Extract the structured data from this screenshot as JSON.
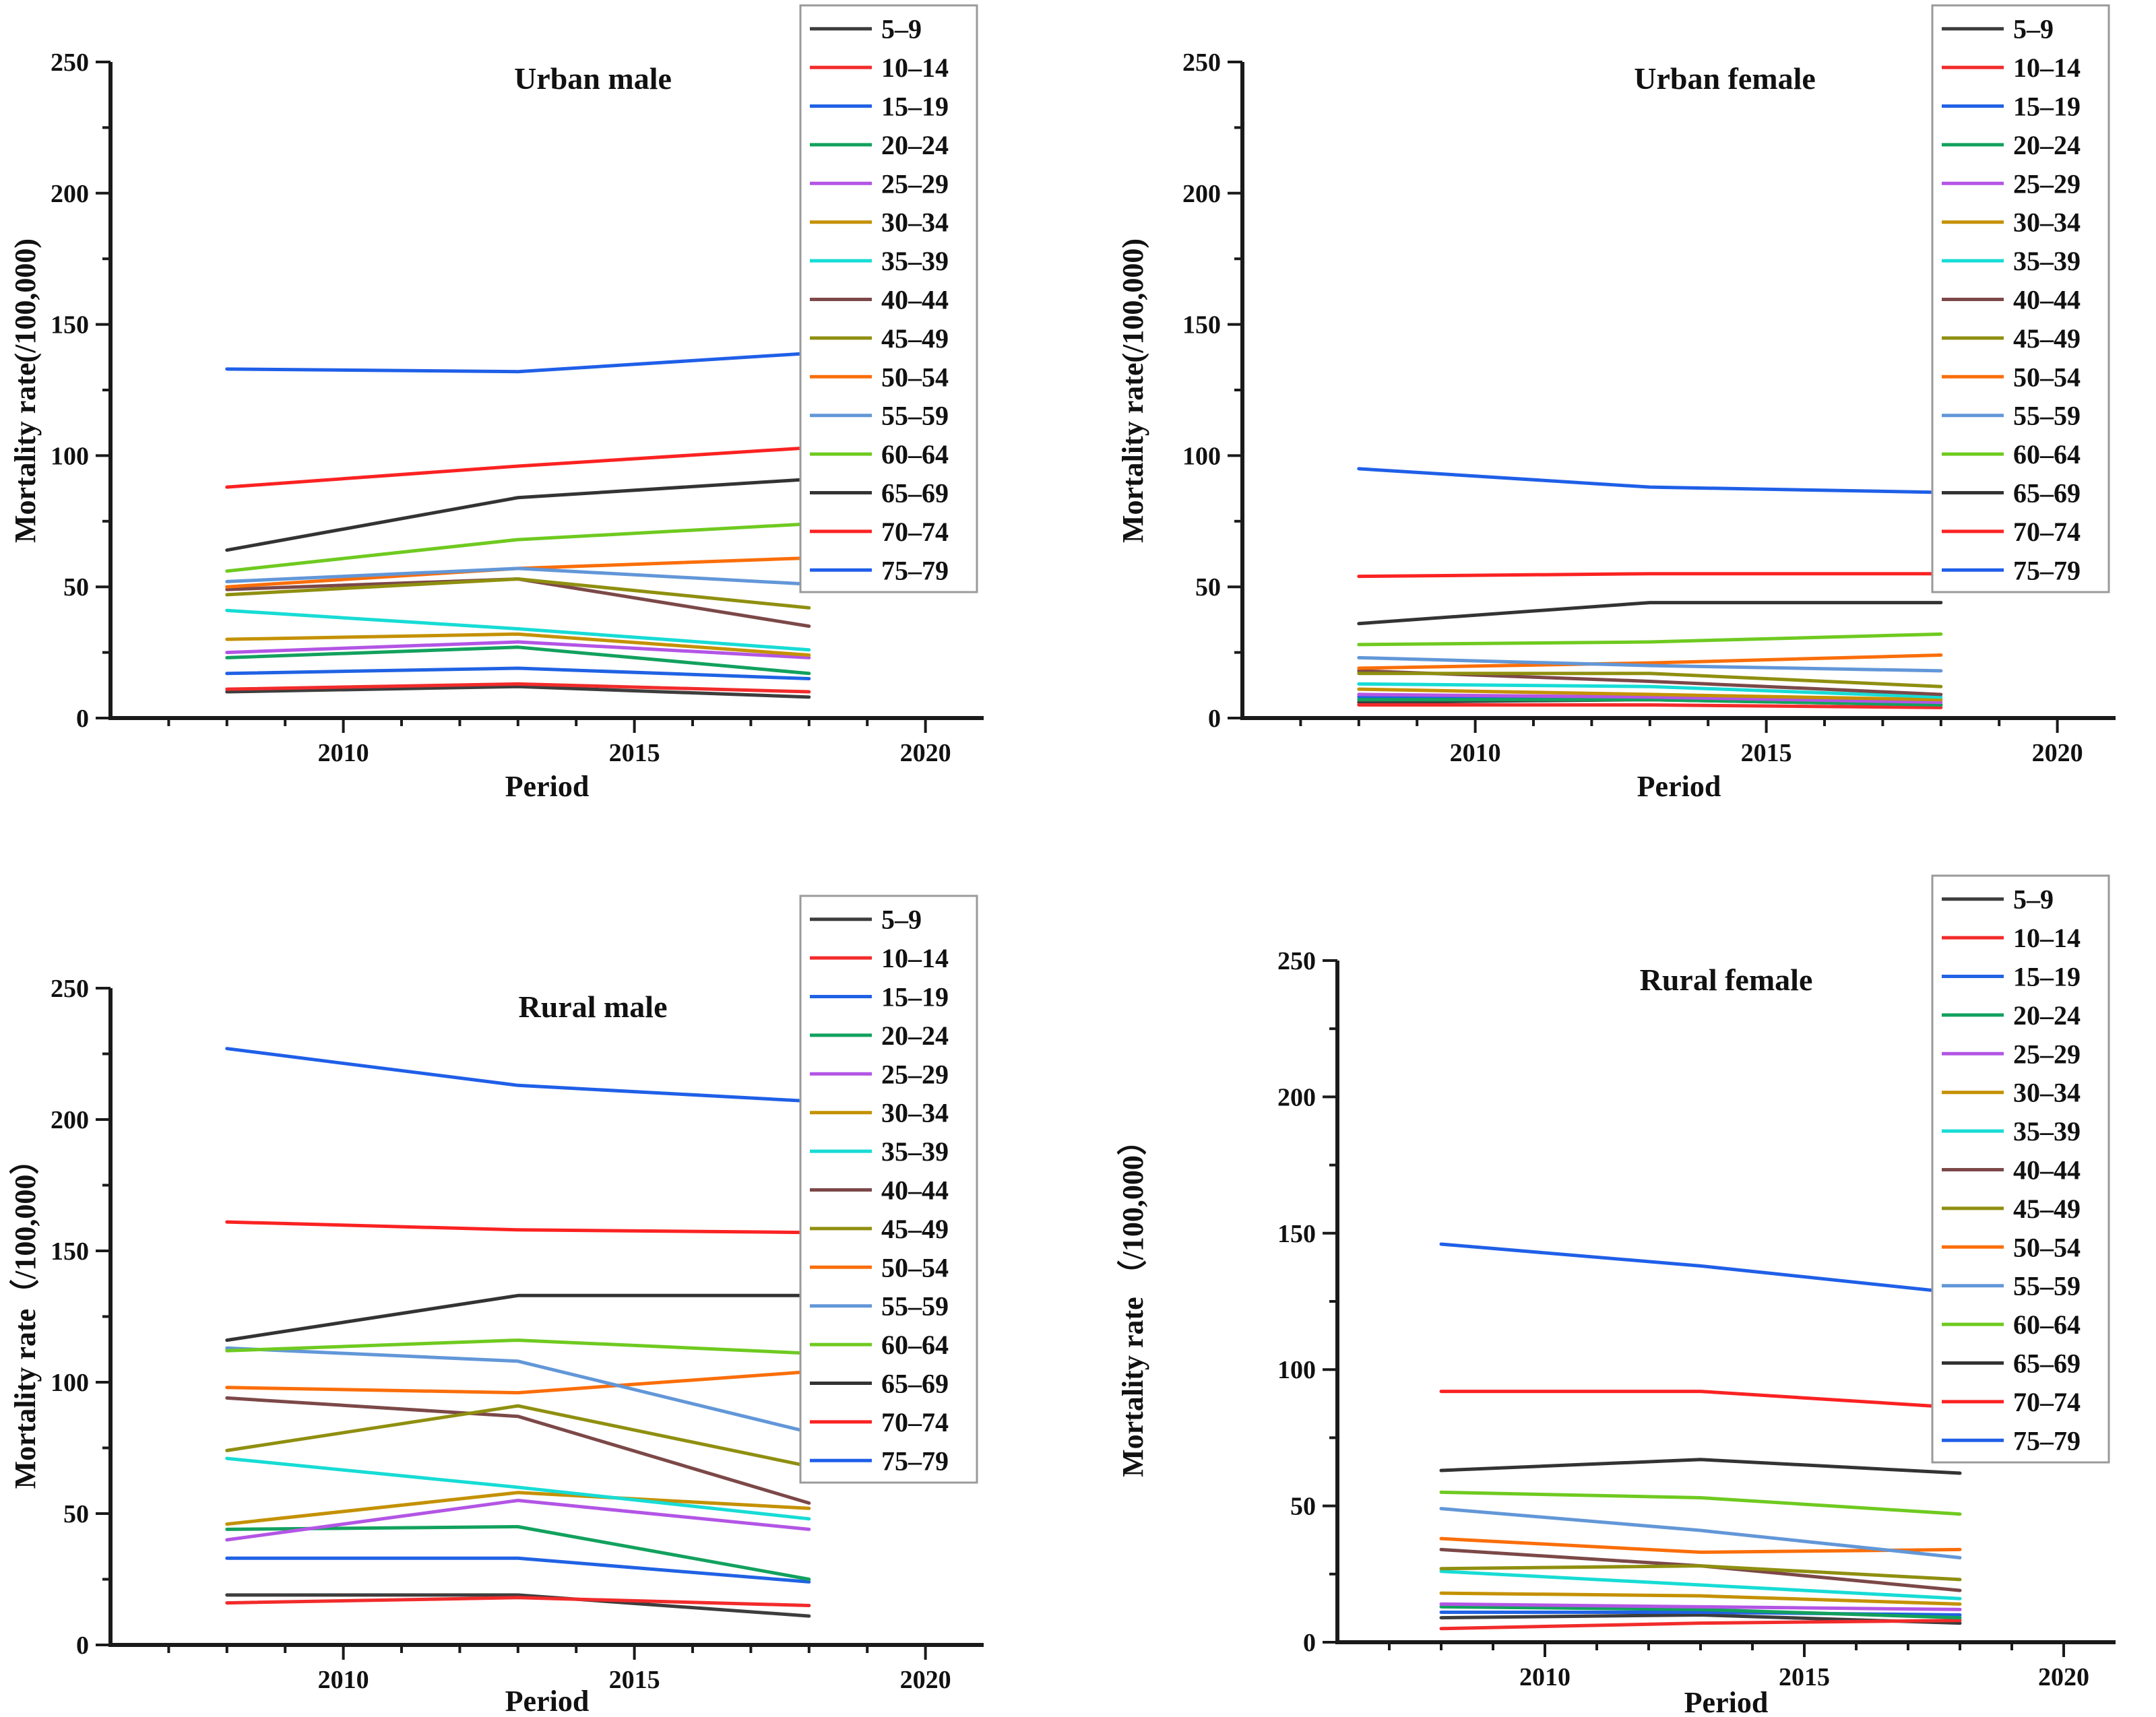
{
  "figure": {
    "background": "#ffffff",
    "axis_color": "#1a1a1a",
    "legend_border_color": "#9a9a9a"
  },
  "legend": {
    "labels": [
      "5–9",
      "10–14",
      "15–19",
      "20–24",
      "25–29",
      "30–34",
      "35–39",
      "40–44",
      "45–49",
      "50–54",
      "55–59",
      "60–64",
      "65–69",
      "70–74",
      "75–79"
    ]
  },
  "chart_data": [
    {
      "type": "line",
      "title": "Urban male",
      "xlabel": "Period",
      "ylabel": "Mortality rate(/100,000)",
      "x": [
        2008,
        2013,
        2018
      ],
      "xlim": [
        2006,
        2021
      ],
      "ylim": [
        0,
        250
      ],
      "xticks": [
        2010,
        2015,
        2020
      ],
      "yticks": [
        0,
        50,
        100,
        150,
        200,
        250
      ],
      "legend_position": "top-right",
      "grid": false,
      "series": [
        {
          "name": "5–9",
          "color": "#3d3d3d",
          "values": [
            10,
            12,
            8
          ]
        },
        {
          "name": "10–14",
          "color": "#f22b2b",
          "values": [
            11,
            13,
            10
          ]
        },
        {
          "name": "15–19",
          "color": "#2062e4",
          "values": [
            17,
            19,
            15
          ]
        },
        {
          "name": "20–24",
          "color": "#12a15e",
          "values": [
            23,
            27,
            17
          ]
        },
        {
          "name": "25–29",
          "color": "#b355e5",
          "values": [
            25,
            29,
            23
          ]
        },
        {
          "name": "30–34",
          "color": "#c49102",
          "values": [
            30,
            32,
            24
          ]
        },
        {
          "name": "35–39",
          "color": "#17dcd5",
          "values": [
            41,
            34,
            26
          ]
        },
        {
          "name": "40–44",
          "color": "#7c4848",
          "values": [
            49,
            53,
            35
          ]
        },
        {
          "name": "45–49",
          "color": "#8f8f10",
          "values": [
            47,
            53,
            42
          ]
        },
        {
          "name": "50–54",
          "color": "#fa6e0a",
          "values": [
            50,
            57,
            61
          ]
        },
        {
          "name": "55–59",
          "color": "#6297d8",
          "values": [
            52,
            57,
            51
          ]
        },
        {
          "name": "60–64",
          "color": "#6fca20",
          "values": [
            56,
            68,
            74
          ]
        },
        {
          "name": "65–69",
          "color": "#333333",
          "values": [
            64,
            84,
            91
          ]
        },
        {
          "name": "70–74",
          "color": "#fb2222",
          "values": [
            88,
            96,
            103
          ]
        },
        {
          "name": "75–79",
          "color": "#1f5fe8",
          "values": [
            133,
            132,
            139
          ]
        }
      ]
    },
    {
      "type": "line",
      "title": "Urban female",
      "xlabel": "Period",
      "ylabel": "Mortality rate(/100,000)",
      "x": [
        2008,
        2013,
        2018
      ],
      "xlim": [
        2006,
        2021
      ],
      "ylim": [
        0,
        250
      ],
      "xticks": [
        2010,
        2015,
        2020
      ],
      "yticks": [
        0,
        50,
        100,
        150,
        200,
        250
      ],
      "legend_position": "top-right",
      "grid": false,
      "series": [
        {
          "name": "5–9",
          "color": "#3d3d3d",
          "values": [
            6,
            7,
            5
          ]
        },
        {
          "name": "10–14",
          "color": "#f22b2b",
          "values": [
            5,
            5,
            4
          ]
        },
        {
          "name": "15–19",
          "color": "#2062e4",
          "values": [
            8,
            8,
            7
          ]
        },
        {
          "name": "20–24",
          "color": "#12a15e",
          "values": [
            7,
            7,
            5
          ]
        },
        {
          "name": "25–29",
          "color": "#b355e5",
          "values": [
            9,
            8,
            6
          ]
        },
        {
          "name": "30–34",
          "color": "#c49102",
          "values": [
            11,
            9,
            7
          ]
        },
        {
          "name": "35–39",
          "color": "#17dcd5",
          "values": [
            13,
            12,
            8
          ]
        },
        {
          "name": "40–44",
          "color": "#7c4848",
          "values": [
            18,
            14,
            9
          ]
        },
        {
          "name": "45–49",
          "color": "#8f8f10",
          "values": [
            17,
            17,
            12
          ]
        },
        {
          "name": "50–54",
          "color": "#fa6e0a",
          "values": [
            19,
            21,
            24
          ]
        },
        {
          "name": "55–59",
          "color": "#6297d8",
          "values": [
            23,
            20,
            18
          ]
        },
        {
          "name": "60–64",
          "color": "#6fca20",
          "values": [
            28,
            29,
            32
          ]
        },
        {
          "name": "65–69",
          "color": "#333333",
          "values": [
            36,
            44,
            44
          ]
        },
        {
          "name": "70–74",
          "color": "#fb2222",
          "values": [
            54,
            55,
            55
          ]
        },
        {
          "name": "75–79",
          "color": "#1f5fe8",
          "values": [
            95,
            88,
            86
          ]
        }
      ]
    },
    {
      "type": "line",
      "title": "Rural male",
      "xlabel": "Period",
      "ylabel": "Mortality rate（/100,000）",
      "x": [
        2008,
        2013,
        2018
      ],
      "xlim": [
        2006,
        2021
      ],
      "ylim": [
        0,
        250
      ],
      "xticks": [
        2010,
        2015,
        2020
      ],
      "yticks": [
        0,
        50,
        100,
        150,
        200,
        250
      ],
      "legend_position": "top-right",
      "grid": false,
      "series": [
        {
          "name": "5–9",
          "color": "#3d3d3d",
          "values": [
            19,
            19,
            11
          ]
        },
        {
          "name": "10–14",
          "color": "#f22b2b",
          "values": [
            16,
            18,
            15
          ]
        },
        {
          "name": "15–19",
          "color": "#2062e4",
          "values": [
            33,
            33,
            24
          ]
        },
        {
          "name": "20–24",
          "color": "#12a15e",
          "values": [
            44,
            45,
            25
          ]
        },
        {
          "name": "25–29",
          "color": "#b355e5",
          "values": [
            40,
            55,
            44
          ]
        },
        {
          "name": "30–34",
          "color": "#c49102",
          "values": [
            46,
            58,
            52
          ]
        },
        {
          "name": "35–39",
          "color": "#17dcd5",
          "values": [
            71,
            60,
            48
          ]
        },
        {
          "name": "40–44",
          "color": "#7c4848",
          "values": [
            94,
            87,
            54
          ]
        },
        {
          "name": "45–49",
          "color": "#8f8f10",
          "values": [
            74,
            91,
            68
          ]
        },
        {
          "name": "50–54",
          "color": "#fa6e0a",
          "values": [
            98,
            96,
            104
          ]
        },
        {
          "name": "55–59",
          "color": "#6297d8",
          "values": [
            113,
            108,
            81
          ]
        },
        {
          "name": "60–64",
          "color": "#6fca20",
          "values": [
            112,
            116,
            111
          ]
        },
        {
          "name": "65–69",
          "color": "#333333",
          "values": [
            116,
            133,
            133
          ]
        },
        {
          "name": "70–74",
          "color": "#fb2222",
          "values": [
            161,
            158,
            157
          ]
        },
        {
          "name": "75–79",
          "color": "#1f5fe8",
          "values": [
            227,
            213,
            207
          ]
        }
      ]
    },
    {
      "type": "line",
      "title": "Rural female",
      "xlabel": "Period",
      "ylabel": "Mortality rate （/100,000）",
      "x": [
        2008,
        2013,
        2018
      ],
      "xlim": [
        2006,
        2021
      ],
      "ylim": [
        0,
        250
      ],
      "xticks": [
        2010,
        2015,
        2020
      ],
      "yticks": [
        0,
        50,
        100,
        150,
        200,
        250
      ],
      "legend_position": "top-right",
      "grid": false,
      "series": [
        {
          "name": "5–9",
          "color": "#3d3d3d",
          "values": [
            9,
            10,
            7
          ]
        },
        {
          "name": "10–14",
          "color": "#f22b2b",
          "values": [
            5,
            7,
            8
          ]
        },
        {
          "name": "15–19",
          "color": "#2062e4",
          "values": [
            11,
            11,
            10
          ]
        },
        {
          "name": "20–24",
          "color": "#12a15e",
          "values": [
            13,
            12,
            9
          ]
        },
        {
          "name": "25–29",
          "color": "#b355e5",
          "values": [
            14,
            13,
            12
          ]
        },
        {
          "name": "30–34",
          "color": "#c49102",
          "values": [
            18,
            17,
            14
          ]
        },
        {
          "name": "35–39",
          "color": "#17dcd5",
          "values": [
            26,
            21,
            16
          ]
        },
        {
          "name": "40–44",
          "color": "#7c4848",
          "values": [
            34,
            28,
            19
          ]
        },
        {
          "name": "45–49",
          "color": "#8f8f10",
          "values": [
            27,
            28,
            23
          ]
        },
        {
          "name": "50–54",
          "color": "#fa6e0a",
          "values": [
            38,
            33,
            34
          ]
        },
        {
          "name": "55–59",
          "color": "#6297d8",
          "values": [
            49,
            41,
            31
          ]
        },
        {
          "name": "60–64",
          "color": "#6fca20",
          "values": [
            55,
            53,
            47
          ]
        },
        {
          "name": "65–69",
          "color": "#333333",
          "values": [
            63,
            67,
            62
          ]
        },
        {
          "name": "70–74",
          "color": "#fb2222",
          "values": [
            92,
            92,
            86
          ]
        },
        {
          "name": "75–79",
          "color": "#1f5fe8",
          "values": [
            146,
            138,
            128
          ]
        }
      ]
    }
  ]
}
